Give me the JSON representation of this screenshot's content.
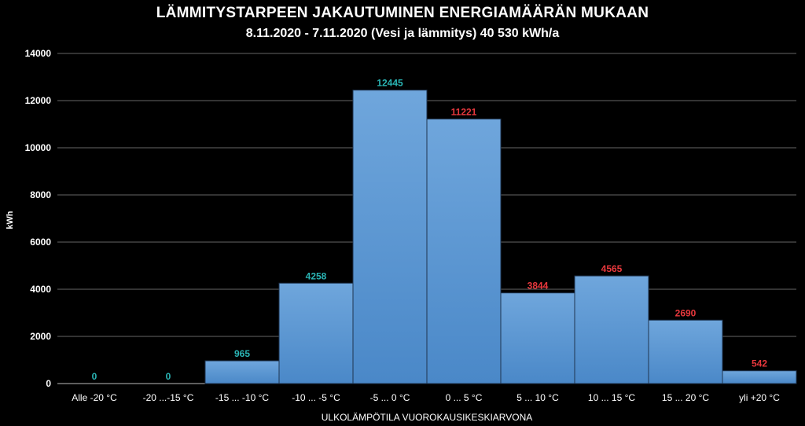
{
  "chart_data": {
    "type": "bar",
    "title": "LÄMMITYSTARPEEN JAKAUTUMINEN ENERGIAMÄÄRÄN MUKAAN",
    "subtitle": "8.11.2020 - 7.11.2020 (Vesi ja lämmitys) 40 530 kWh/a",
    "xlabel": "ULKOLÄMPÖTILA VUOROKAUSIKESKIARVONA",
    "ylabel": "kWh",
    "ylim": [
      0,
      14000
    ],
    "yticks": [
      0,
      2000,
      4000,
      6000,
      8000,
      10000,
      12000,
      14000
    ],
    "grid": true,
    "categories": [
      "Alle -20 °C",
      "-20 ...-15 °C",
      "-15 ... -10 °C",
      "-10 ... -5 °C",
      "-5 ... 0 °C",
      "0 ... 5 °C",
      "5 ... 10 °C",
      "10 ... 15 °C",
      "15 ... 20 °C",
      "yli +20 °C"
    ],
    "values": [
      0,
      0,
      965,
      4258,
      12445,
      11221,
      3844,
      4565,
      2690,
      542
    ],
    "label_colors": [
      "#2ab5b5",
      "#2ab5b5",
      "#2ab5b5",
      "#2ab5b5",
      "#2ab5b5",
      "#e8383d",
      "#e8383d",
      "#e8383d",
      "#e8383d",
      "#e8383d"
    ],
    "bar_color": "#5b9bd5"
  }
}
